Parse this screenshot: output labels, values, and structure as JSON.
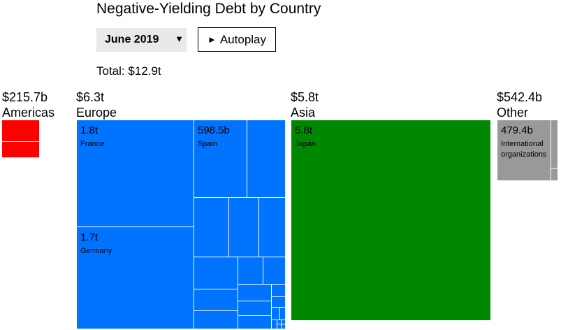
{
  "title": "Negative-Yielding Debt by Country",
  "controls": {
    "period_selected": "June 2019",
    "dropdown_arrow": "▼",
    "autoplay_icon": "►",
    "autoplay_label": "Autoplay"
  },
  "total_label": "Total: $12.9t",
  "regions": {
    "americas": {
      "value": "$215.7b",
      "name": "Americas",
      "color": "#ff0000"
    },
    "europe": {
      "value": "$6.3t",
      "name": "Europe",
      "color": "#0073ff"
    },
    "asia": {
      "value": "$5.8t",
      "name": "Asia",
      "color": "#008800"
    },
    "other": {
      "value": "$542.4b",
      "name": "Other",
      "color": "#999999"
    }
  },
  "chart_data": {
    "type": "treemap",
    "title": "Negative-Yielding Debt by Country",
    "total": "$12.9t",
    "groups": [
      {
        "name": "Americas",
        "value_label": "$215.7b",
        "value_billion": 215.7,
        "items": []
      },
      {
        "name": "Europe",
        "value_label": "$6.3t",
        "value_billion": 6300,
        "items": [
          {
            "name": "France",
            "value_label": "1.8t",
            "value_billion": 1800
          },
          {
            "name": "Germany",
            "value_label": "1.7t",
            "value_billion": 1700
          },
          {
            "name": "Spain",
            "value_label": "598.5b",
            "value_billion": 598.5
          }
        ]
      },
      {
        "name": "Asia",
        "value_label": "$5.8t",
        "value_billion": 5800,
        "items": [
          {
            "name": "Japan",
            "value_label": "5.8t",
            "value_billion": 5800
          }
        ]
      },
      {
        "name": "Other",
        "value_label": "$542.4b",
        "value_billion": 542.4,
        "items": [
          {
            "name": "International organizations",
            "value_label": "479.4b",
            "value_billion": 479.4
          }
        ]
      }
    ]
  }
}
